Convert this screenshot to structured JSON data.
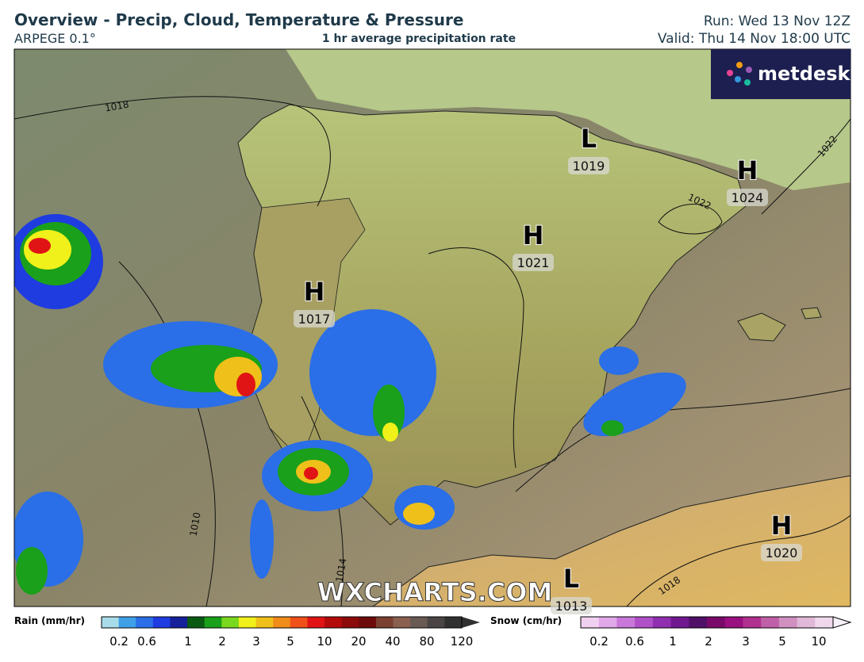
{
  "header": {
    "title": "Overview - Precip, Cloud, Temperature & Pressure",
    "model": "ARPEGE 0.1°",
    "subtitle": "1 hr average precipitation rate",
    "run": "Run: Wed 13 Nov 12Z",
    "valid": "Valid: Thu 14 Nov 18:00 UTC"
  },
  "logo": "metdesk",
  "pressure_centers": [
    {
      "type": "L",
      "value": "1019"
    },
    {
      "type": "H",
      "value": "1024"
    },
    {
      "type": "H",
      "value": "1021"
    },
    {
      "type": "H",
      "value": "1017"
    },
    {
      "type": "H",
      "value": "1020"
    },
    {
      "type": "L",
      "value": "1013"
    }
  ],
  "isobar_labels": [
    "1018",
    "1022",
    "1022",
    "1010",
    "1014",
    "1018"
  ],
  "watermark": "WXCHARTS.COM",
  "rain_legend": {
    "title": "Rain (mm/hr)",
    "ticks": [
      "0.2",
      "0.6",
      "1",
      "2",
      "3",
      "5",
      "10",
      "20",
      "40",
      "80",
      "120"
    ]
  },
  "snow_legend": {
    "title": "Snow (cm/hr)",
    "ticks": [
      "0.2",
      "0.6",
      "1",
      "2",
      "3",
      "5",
      "10"
    ]
  }
}
